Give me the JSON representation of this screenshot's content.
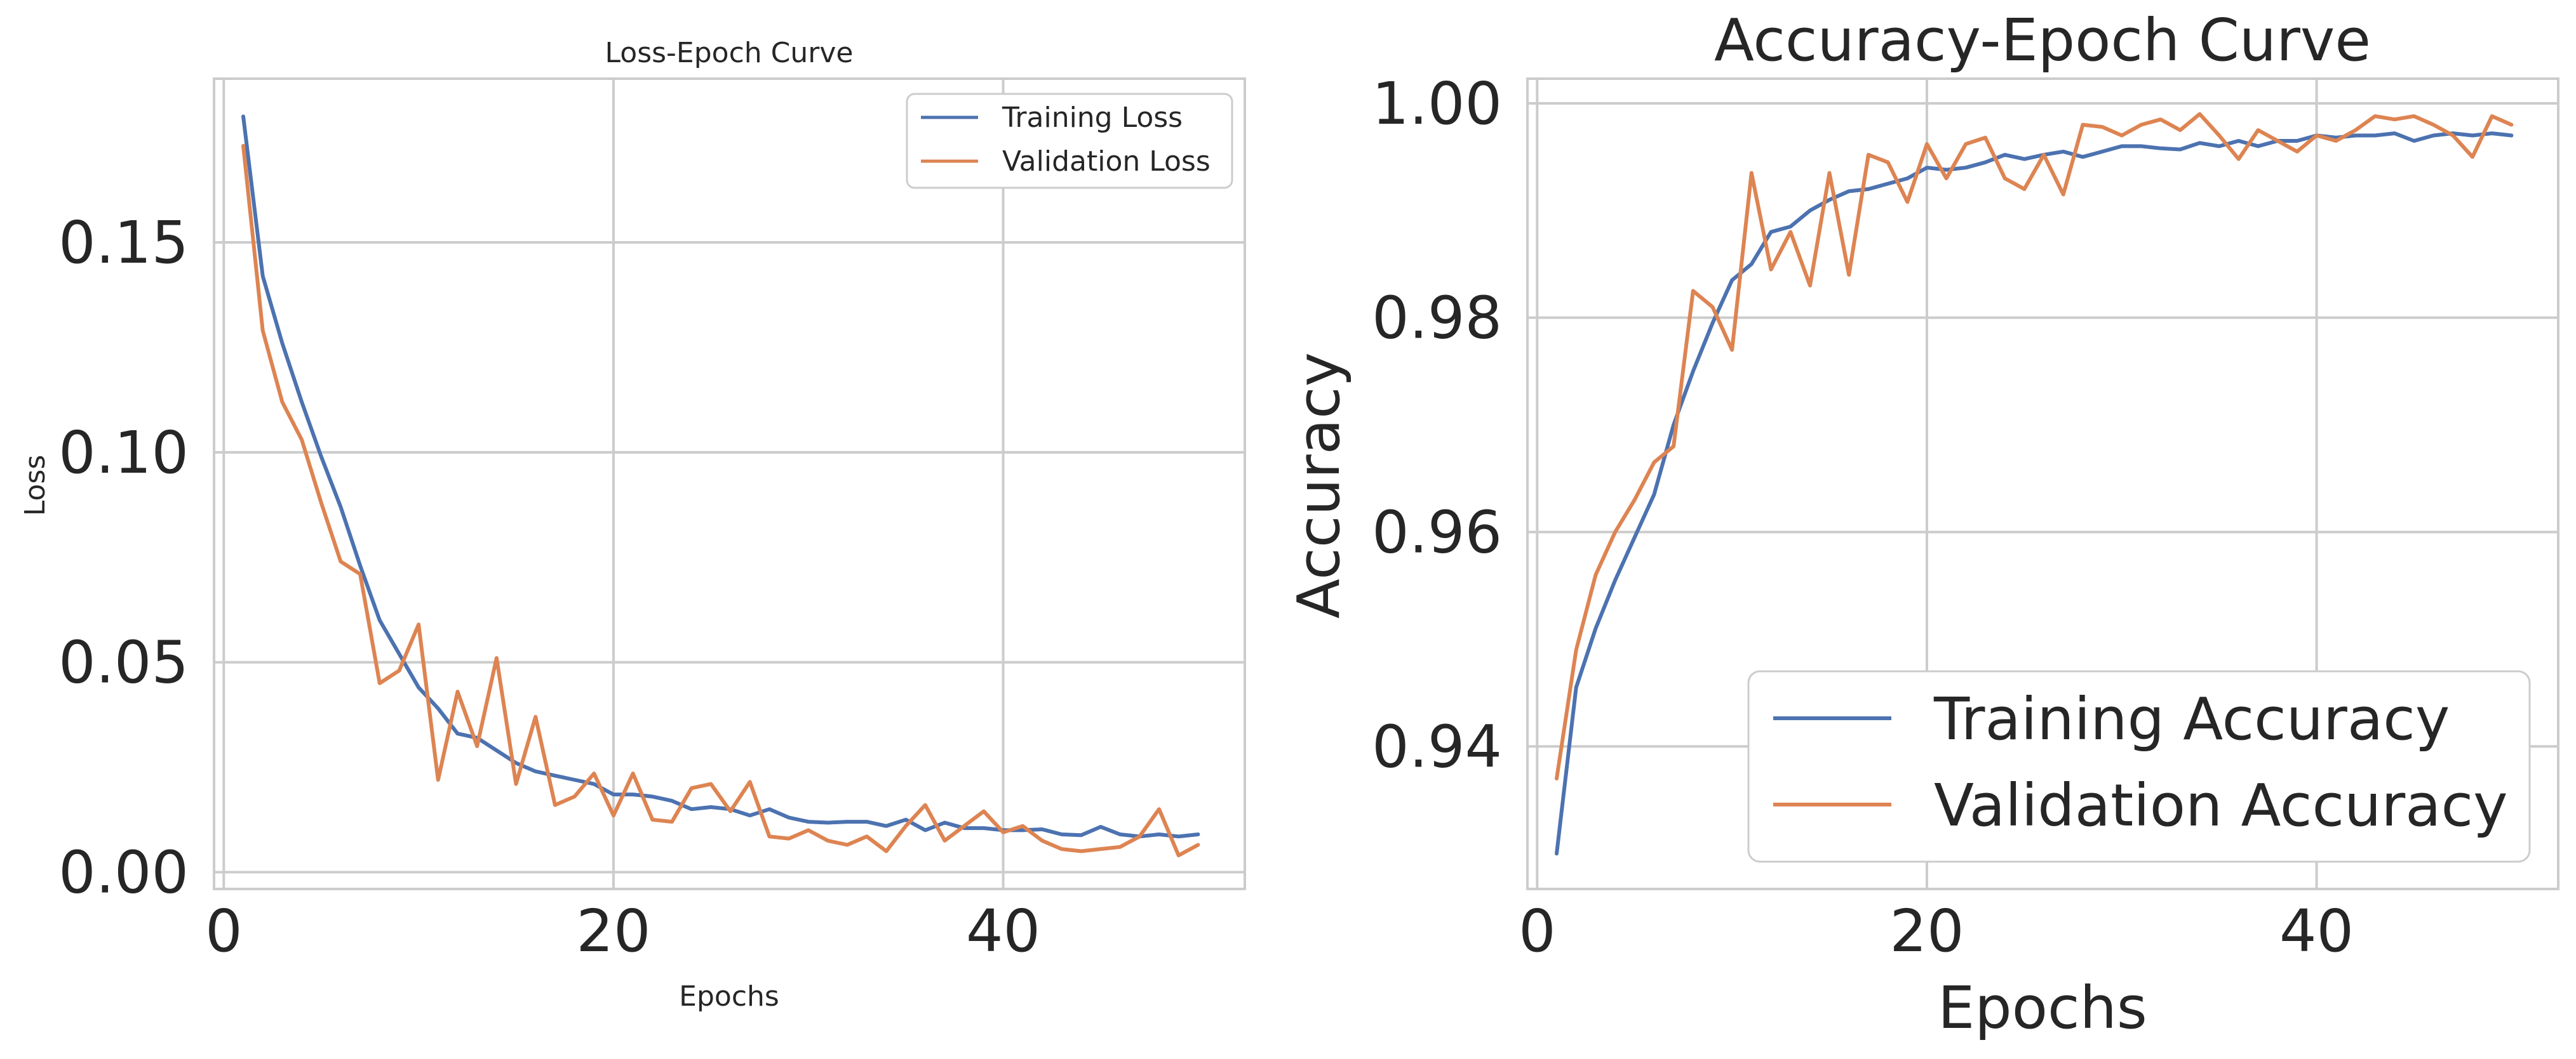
{
  "chart_data": [
    {
      "type": "line",
      "title": "Loss-Epoch Curve",
      "xlabel": "Epochs",
      "ylabel": "Loss",
      "xlim": [
        -0.5,
        52.4
      ],
      "ylim": [
        -0.004,
        0.189
      ],
      "xticks": [
        0,
        20,
        40
      ],
      "xtick_labels": [
        "0",
        "20",
        "40"
      ],
      "yticks": [
        0.0,
        0.05,
        0.1,
        0.15
      ],
      "ytick_labels": [
        "0.00",
        "0.05",
        "0.10",
        "0.15"
      ],
      "grid": true,
      "legend_position": "upper right",
      "x": [
        1,
        2,
        3,
        4,
        5,
        6,
        7,
        8,
        9,
        10,
        11,
        12,
        13,
        14,
        15,
        16,
        17,
        18,
        19,
        20,
        21,
        22,
        23,
        24,
        25,
        26,
        27,
        28,
        29,
        30,
        31,
        32,
        33,
        34,
        35,
        36,
        37,
        38,
        39,
        40,
        41,
        42,
        43,
        44,
        45,
        46,
        47,
        48,
        49,
        50
      ],
      "series": [
        {
          "name": "Training Loss",
          "color": "#4c72b0",
          "values": [
            0.18,
            0.142,
            0.126,
            0.112,
            0.099,
            0.087,
            0.073,
            0.06,
            0.052,
            0.044,
            0.039,
            0.033,
            0.032,
            0.029,
            0.026,
            0.024,
            0.023,
            0.022,
            0.021,
            0.0185,
            0.0185,
            0.018,
            0.017,
            0.015,
            0.0155,
            0.015,
            0.0135,
            0.015,
            0.013,
            0.012,
            0.0118,
            0.012,
            0.012,
            0.011,
            0.0125,
            0.01,
            0.0118,
            0.0105,
            0.0105,
            0.01,
            0.01,
            0.0102,
            0.009,
            0.0088,
            0.0108,
            0.009,
            0.0085,
            0.009,
            0.0085,
            0.009
          ]
        },
        {
          "name": "Validation Loss",
          "color": "#dd8452",
          "values": [
            0.173,
            0.129,
            0.112,
            0.103,
            0.088,
            0.074,
            0.071,
            0.045,
            0.048,
            0.059,
            0.022,
            0.043,
            0.03,
            0.051,
            0.021,
            0.037,
            0.016,
            0.018,
            0.0235,
            0.0135,
            0.0235,
            0.0125,
            0.012,
            0.02,
            0.021,
            0.0145,
            0.0215,
            0.0085,
            0.008,
            0.01,
            0.0075,
            0.0065,
            0.0085,
            0.005,
            0.011,
            0.016,
            0.0075,
            0.011,
            0.0145,
            0.0095,
            0.011,
            0.0075,
            0.0055,
            0.005,
            0.0055,
            0.006,
            0.0085,
            0.015,
            0.004,
            0.0065
          ]
        }
      ]
    },
    {
      "type": "line",
      "title": "Accuracy-Epoch Curve",
      "xlabel": "Epochs",
      "ylabel": "Accuracy",
      "xlim": [
        -0.5,
        52.4
      ],
      "ylim": [
        0.9267,
        1.0023
      ],
      "xticks": [
        0,
        20,
        40
      ],
      "xtick_labels": [
        "0",
        "20",
        "40"
      ],
      "yticks": [
        0.94,
        0.96,
        0.98,
        1.0
      ],
      "ytick_labels": [
        "0.94",
        "0.96",
        "0.98",
        "1.00"
      ],
      "grid": true,
      "legend_position": "lower right",
      "x": [
        1,
        2,
        3,
        4,
        5,
        6,
        7,
        8,
        9,
        10,
        11,
        12,
        13,
        14,
        15,
        16,
        17,
        18,
        19,
        20,
        21,
        22,
        23,
        24,
        25,
        26,
        27,
        28,
        29,
        30,
        31,
        32,
        33,
        34,
        35,
        36,
        37,
        38,
        39,
        40,
        41,
        42,
        43,
        44,
        45,
        46,
        47,
        48,
        49,
        50
      ],
      "series": [
        {
          "name": "Training Accuracy",
          "color": "#4c72b0",
          "values": [
            0.93,
            0.9455,
            0.951,
            0.9555,
            0.9595,
            0.9635,
            0.97,
            0.975,
            0.9795,
            0.9835,
            0.985,
            0.988,
            0.9885,
            0.99,
            0.991,
            0.9918,
            0.992,
            0.9925,
            0.993,
            0.994,
            0.9938,
            0.994,
            0.9945,
            0.9952,
            0.9948,
            0.9952,
            0.9955,
            0.995,
            0.9955,
            0.996,
            0.996,
            0.9958,
            0.9957,
            0.9963,
            0.996,
            0.9965,
            0.996,
            0.9965,
            0.9965,
            0.997,
            0.9968,
            0.997,
            0.997,
            0.9972,
            0.9965,
            0.997,
            0.9972,
            0.997,
            0.9972,
            0.997
          ]
        },
        {
          "name": "Validation Accuracy",
          "color": "#dd8452",
          "values": [
            0.937,
            0.949,
            0.956,
            0.96,
            0.963,
            0.9665,
            0.968,
            0.9825,
            0.981,
            0.977,
            0.9935,
            0.9845,
            0.988,
            0.983,
            0.9935,
            0.984,
            0.9952,
            0.9945,
            0.9908,
            0.9962,
            0.993,
            0.9962,
            0.9968,
            0.993,
            0.992,
            0.9952,
            0.9915,
            0.998,
            0.9978,
            0.997,
            0.998,
            0.9985,
            0.9975,
            0.999,
            0.997,
            0.9948,
            0.9975,
            0.9965,
            0.9955,
            0.997,
            0.9965,
            0.9975,
            0.9988,
            0.9985,
            0.9988,
            0.998,
            0.997,
            0.995,
            0.9988,
            0.998
          ]
        }
      ]
    }
  ]
}
